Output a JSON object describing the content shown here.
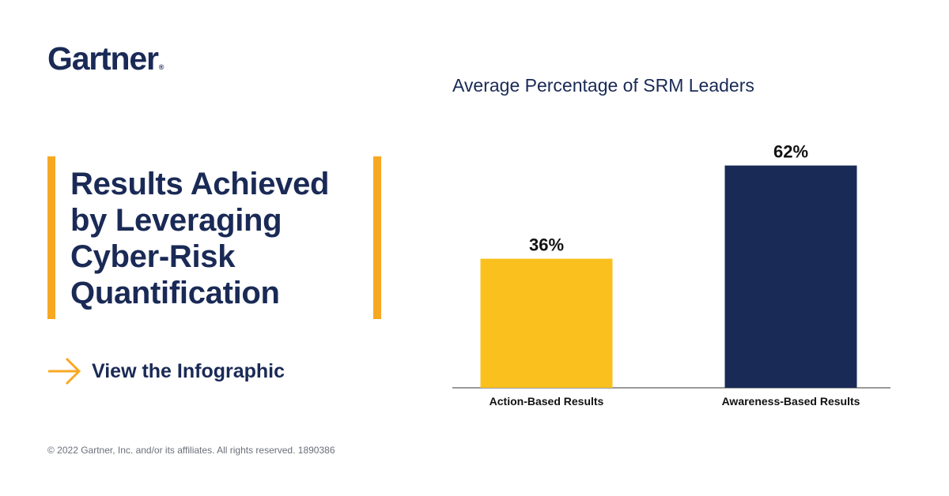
{
  "brand": {
    "name": "Gartner",
    "registered_mark": "®",
    "accent": "#f7a823",
    "navy": "#1a2a56"
  },
  "headline": "Results Achieved by Leveraging Cyber-Risk Quantification",
  "cta": {
    "label": "View the Infographic",
    "icon": "arrow-right-icon"
  },
  "copyright": "© 2022 Gartner, Inc. and/or its affiliates. All rights reserved. 1890386",
  "chart_data": {
    "type": "bar",
    "title": "Average Percentage of SRM Leaders",
    "categories": [
      "Action-Based Results",
      "Awareness-Based Results"
    ],
    "values": [
      36,
      62
    ],
    "value_labels": [
      "36%",
      "62%"
    ],
    "colors": [
      "#f9c01e",
      "#1a2a56"
    ],
    "ylim": [
      0,
      70
    ],
    "grid": false,
    "legend": "none",
    "xlabel": "",
    "ylabel": ""
  }
}
